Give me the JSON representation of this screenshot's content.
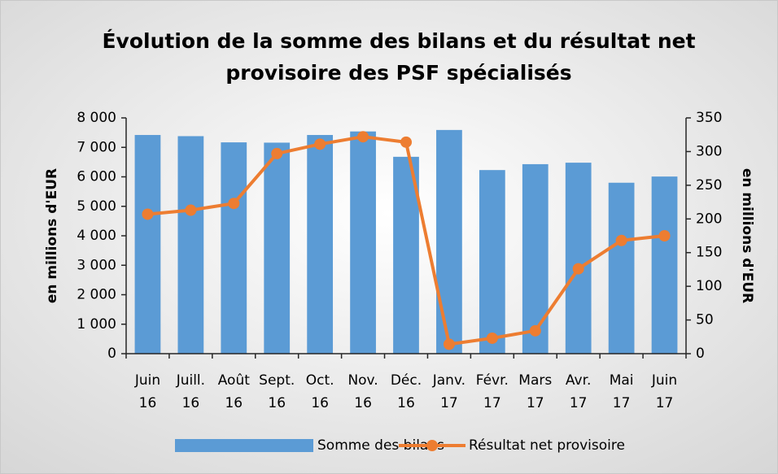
{
  "chart_data": {
    "type": "bar+line",
    "title": [
      "Évolution de la somme des bilans et du résultat net",
      "provisoire des PSF spécialisés"
    ],
    "ylabel": "en millions d'EUR",
    "y2label": "en millions d'EUR",
    "categories": [
      [
        "Juin",
        "16"
      ],
      [
        "Juill.",
        "16"
      ],
      [
        "Août",
        "16"
      ],
      [
        "Sept.",
        "16"
      ],
      [
        "Oct.",
        "16"
      ],
      [
        "Nov.",
        "16"
      ],
      [
        "Déc.",
        "16"
      ],
      [
        "Janv.",
        "17"
      ],
      [
        "Févr.",
        "17"
      ],
      [
        "Mars",
        "17"
      ],
      [
        "Avr.",
        "17"
      ],
      [
        "Mai",
        "17"
      ],
      [
        "Juin",
        "17"
      ]
    ],
    "series": [
      {
        "name": "Somme des bilans",
        "type": "bar",
        "color": "#5b9bd5",
        "values": [
          7420,
          7380,
          7170,
          7160,
          7420,
          7540,
          6680,
          7590,
          6230,
          6430,
          6480,
          5800,
          6010
        ]
      },
      {
        "name": "Résultat net provisoire",
        "type": "line",
        "axis": "y2",
        "color": "#ed7d31",
        "values": [
          207,
          213,
          223,
          297,
          311,
          322,
          314,
          14,
          23,
          34,
          126,
          168,
          175
        ]
      }
    ],
    "ylim": [
      0,
      8000
    ],
    "yticks": [
      0,
      {
        "value": 1000,
        "label": "1 000"
      },
      {
        "value": 2000,
        "label": "2 000"
      },
      {
        "value": 3000,
        "label": "3 000"
      },
      {
        "value": 4000,
        "label": "4 000"
      },
      {
        "value": 5000,
        "label": "5 000"
      },
      {
        "value": 6000,
        "label": "6 000"
      },
      {
        "value": 7000,
        "label": "7 000"
      },
      {
        "value": 8000,
        "label": "8 000"
      }
    ],
    "y2lim": [
      0,
      350
    ],
    "y2ticks": [
      0,
      50,
      100,
      150,
      200,
      250,
      300,
      350
    ],
    "grid": false,
    "legend": "bottom"
  }
}
